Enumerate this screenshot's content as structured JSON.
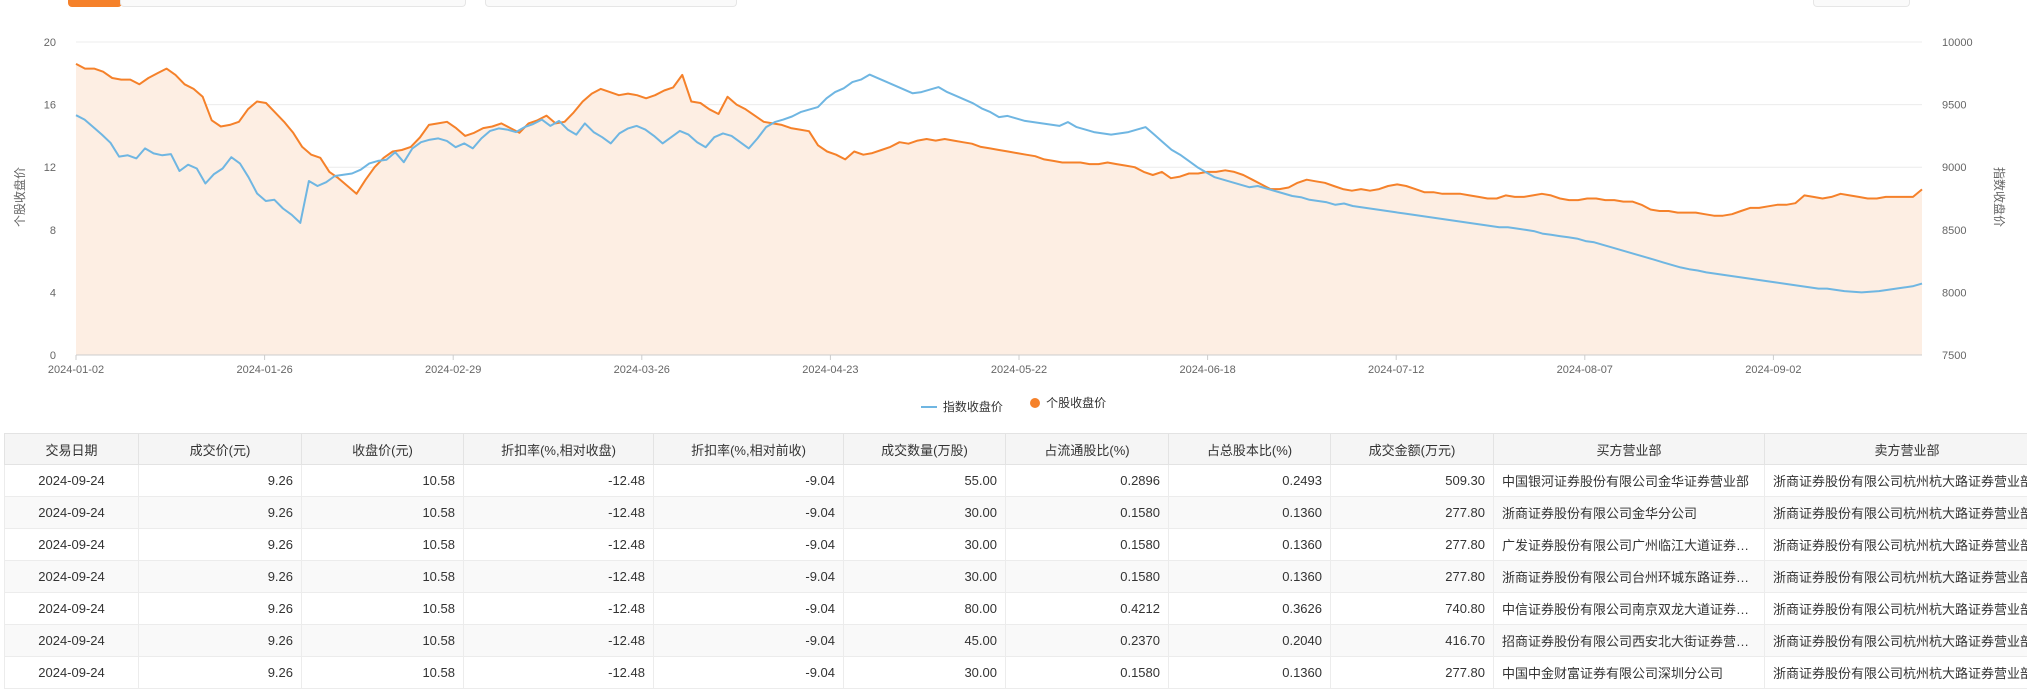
{
  "colors": {
    "index_line": "#6fb6e2",
    "stock_line": "#f5812a",
    "area_fill": "#fdeee3",
    "grid": "#ececec",
    "axis_text": "#666666"
  },
  "chart_data": {
    "type": "line",
    "legend": {
      "position": "bottom-center",
      "items": [
        "指数收盘价",
        "个股收盘价"
      ]
    },
    "grid": true,
    "x_tick_labels": [
      "2024-01-02",
      "2024-01-26",
      "2024-02-29",
      "2024-03-26",
      "2024-04-23",
      "2024-05-22",
      "2024-06-18",
      "2024-07-12",
      "2024-08-07",
      "2024-09-02"
    ],
    "y_left": {
      "label": "个股收盘价",
      "ylim": [
        0,
        20
      ],
      "ticks": [
        "0",
        "4",
        "8",
        "12",
        "16",
        "20"
      ]
    },
    "y_right": {
      "label": "指数收盘价",
      "ylim": [
        7500,
        10000
      ],
      "ticks": [
        "7500",
        "8000",
        "8500",
        "9000",
        "9500",
        "10000"
      ]
    },
    "series": [
      {
        "name": "个股收盘价",
        "axis": "left",
        "style": "line-with-area",
        "values": [
          18.6,
          18.3,
          18.3,
          18.1,
          17.7,
          17.6,
          17.6,
          17.3,
          17.7,
          18.0,
          18.3,
          17.9,
          17.3,
          17.0,
          16.5,
          15.0,
          14.6,
          14.7,
          14.9,
          15.7,
          16.2,
          16.1,
          15.5,
          14.9,
          14.2,
          13.3,
          12.8,
          12.6,
          11.7,
          11.3,
          10.8,
          10.3,
          11.2,
          12.0,
          12.6,
          13.0,
          13.1,
          13.3,
          13.9,
          14.7,
          14.8,
          14.9,
          14.5,
          14.0,
          14.2,
          14.5,
          14.6,
          14.8,
          14.5,
          14.2,
          14.8,
          15.0,
          15.3,
          14.8,
          14.9,
          15.5,
          16.2,
          16.7,
          17.0,
          16.8,
          16.6,
          16.7,
          16.6,
          16.4,
          16.6,
          16.9,
          17.1,
          17.9,
          16.2,
          16.1,
          15.7,
          15.4,
          16.5,
          16.0,
          15.7,
          15.3,
          14.9,
          14.8,
          14.7,
          14.5,
          14.4,
          14.3,
          13.4,
          13.0,
          12.8,
          12.5,
          13.0,
          12.8,
          12.9,
          13.1,
          13.3,
          13.6,
          13.5,
          13.7,
          13.8,
          13.7,
          13.8,
          13.7,
          13.6,
          13.5,
          13.3,
          13.2,
          13.1,
          13.0,
          12.9,
          12.8,
          12.7,
          12.5,
          12.4,
          12.3,
          12.3,
          12.3,
          12.2,
          12.2,
          12.3,
          12.2,
          12.1,
          12.0,
          11.7,
          11.5,
          11.7,
          11.3,
          11.4,
          11.6,
          11.6,
          11.7,
          11.7,
          11.8,
          11.7,
          11.5,
          11.2,
          10.9,
          10.6,
          10.6,
          10.7,
          11.0,
          11.2,
          11.1,
          11.0,
          10.8,
          10.6,
          10.5,
          10.6,
          10.5,
          10.6,
          10.8,
          10.9,
          10.8,
          10.6,
          10.4,
          10.4,
          10.3,
          10.3,
          10.3,
          10.2,
          10.1,
          10.0,
          10.0,
          10.2,
          10.1,
          10.1,
          10.2,
          10.3,
          10.2,
          10.0,
          9.9,
          9.9,
          10.0,
          10.0,
          9.9,
          9.9,
          9.8,
          9.8,
          9.6,
          9.3,
          9.2,
          9.2,
          9.1,
          9.1,
          9.1,
          9.0,
          8.9,
          8.9,
          9.0,
          9.2,
          9.4,
          9.4,
          9.5,
          9.6,
          9.6,
          9.7,
          10.2,
          10.1,
          10.0,
          10.1,
          10.3,
          10.2,
          10.1,
          10.0,
          10.0,
          10.1,
          10.1,
          10.1,
          10.1,
          10.58
        ]
      },
      {
        "name": "指数收盘价",
        "axis": "right",
        "style": "line",
        "values": [
          9415,
          9380,
          9320,
          9260,
          9195,
          9085,
          9095,
          9070,
          9150,
          9110,
          9095,
          9105,
          8970,
          9020,
          8990,
          8870,
          8945,
          8990,
          9080,
          9030,
          8920,
          8790,
          8730,
          8740,
          8670,
          8620,
          8555,
          8890,
          8850,
          8880,
          8930,
          8940,
          8950,
          8980,
          9030,
          9050,
          9060,
          9120,
          9040,
          9150,
          9200,
          9220,
          9230,
          9210,
          9160,
          9190,
          9150,
          9230,
          9290,
          9310,
          9300,
          9280,
          9320,
          9345,
          9380,
          9330,
          9370,
          9300,
          9260,
          9350,
          9280,
          9240,
          9190,
          9270,
          9310,
          9330,
          9300,
          9250,
          9190,
          9240,
          9290,
          9260,
          9200,
          9160,
          9240,
          9270,
          9250,
          9200,
          9150,
          9230,
          9320,
          9360,
          9380,
          9405,
          9440,
          9460,
          9480,
          9550,
          9600,
          9630,
          9680,
          9700,
          9740,
          9710,
          9680,
          9650,
          9620,
          9590,
          9600,
          9620,
          9640,
          9600,
          9570,
          9540,
          9510,
          9470,
          9440,
          9400,
          9410,
          9390,
          9370,
          9360,
          9350,
          9340,
          9330,
          9360,
          9320,
          9300,
          9280,
          9270,
          9260,
          9270,
          9280,
          9300,
          9320,
          9260,
          9200,
          9140,
          9100,
          9050,
          9000,
          8960,
          8920,
          8900,
          8880,
          8860,
          8840,
          8850,
          8830,
          8810,
          8790,
          8770,
          8760,
          8740,
          8730,
          8720,
          8700,
          8710,
          8690,
          8680,
          8670,
          8660,
          8650,
          8640,
          8630,
          8620,
          8610,
          8600,
          8590,
          8580,
          8570,
          8560,
          8550,
          8540,
          8530,
          8520,
          8520,
          8510,
          8500,
          8490,
          8470,
          8460,
          8450,
          8440,
          8430,
          8410,
          8400,
          8380,
          8360,
          8340,
          8320,
          8300,
          8280,
          8260,
          8240,
          8220,
          8200,
          8185,
          8175,
          8160,
          8150,
          8140,
          8130,
          8120,
          8110,
          8100,
          8090,
          8080,
          8070,
          8060,
          8050,
          8040,
          8030,
          8030,
          8020,
          8010,
          8005,
          8000,
          8005,
          8010,
          8020,
          8030,
          8040,
          8050,
          8070
        ]
      }
    ]
  },
  "table": {
    "headers": [
      "交易日期",
      "成交价(元)",
      "收盘价(元)",
      "折扣率(%,相对收盘)",
      "折扣率(%,相对前收)",
      "成交数量(万股)",
      "占流通股比(%)",
      "占总股本比(%)",
      "成交金额(万元)",
      "买方营业部",
      "卖方营业部"
    ],
    "rows": [
      [
        "2024-09-24",
        "9.26",
        "10.58",
        "-12.48",
        "-9.04",
        "55.00",
        "0.2896",
        "0.2493",
        "509.30",
        "中国银河证券股份有限公司金华证券营业部",
        "浙商证券股份有限公司杭州杭大路证券营业部"
      ],
      [
        "2024-09-24",
        "9.26",
        "10.58",
        "-12.48",
        "-9.04",
        "30.00",
        "0.1580",
        "0.1360",
        "277.80",
        "浙商证券股份有限公司金华分公司",
        "浙商证券股份有限公司杭州杭大路证券营业部"
      ],
      [
        "2024-09-24",
        "9.26",
        "10.58",
        "-12.48",
        "-9.04",
        "30.00",
        "0.1580",
        "0.1360",
        "277.80",
        "广发证券股份有限公司广州临江大道证券营业部",
        "浙商证券股份有限公司杭州杭大路证券营业部"
      ],
      [
        "2024-09-24",
        "9.26",
        "10.58",
        "-12.48",
        "-9.04",
        "30.00",
        "0.1580",
        "0.1360",
        "277.80",
        "浙商证券股份有限公司台州环城东路证券营业部",
        "浙商证券股份有限公司杭州杭大路证券营业部"
      ],
      [
        "2024-09-24",
        "9.26",
        "10.58",
        "-12.48",
        "-9.04",
        "80.00",
        "0.4212",
        "0.3626",
        "740.80",
        "中信证券股份有限公司南京双龙大道证券营业部",
        "浙商证券股份有限公司杭州杭大路证券营业部"
      ],
      [
        "2024-09-24",
        "9.26",
        "10.58",
        "-12.48",
        "-9.04",
        "45.00",
        "0.2370",
        "0.2040",
        "416.70",
        "招商证券股份有限公司西安北大街证券营业部",
        "浙商证券股份有限公司杭州杭大路证券营业部"
      ],
      [
        "2024-09-24",
        "9.26",
        "10.58",
        "-12.48",
        "-9.04",
        "30.00",
        "0.1580",
        "0.1360",
        "277.80",
        "中国中金财富证券有限公司深圳分公司",
        "浙商证券股份有限公司杭州杭大路证券营业部"
      ]
    ]
  }
}
